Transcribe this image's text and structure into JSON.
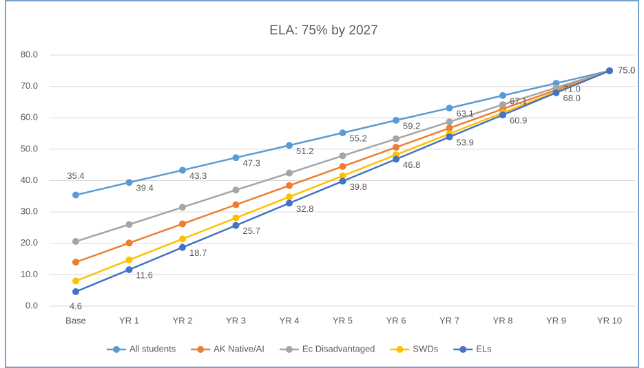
{
  "chart_data": {
    "type": "line",
    "title": "ELA: 75% by 2027",
    "categories": [
      "Base",
      "YR 1",
      "YR 2",
      "YR 3",
      "YR 4",
      "YR 5",
      "YR 6",
      "YR 7",
      "YR 8",
      "YR 9",
      "YR 10"
    ],
    "ylim": [
      0,
      80
    ],
    "yticks": [
      {
        "value": 0,
        "label": "0.0"
      },
      {
        "value": 10,
        "label": "10.0"
      },
      {
        "value": 20,
        "label": "20.0"
      },
      {
        "value": 30,
        "label": "30.0"
      },
      {
        "value": 40,
        "label": "40.0"
      },
      {
        "value": 50,
        "label": "50.0"
      },
      {
        "value": 60,
        "label": "60.0"
      },
      {
        "value": 70,
        "label": "70.0"
      },
      {
        "value": 80,
        "label": "80.0"
      }
    ],
    "grid": true,
    "legend": "bottom",
    "series": [
      {
        "name": "All students",
        "color": "#5b9bd5",
        "values": [
          35.4,
          39.4,
          43.3,
          47.3,
          51.2,
          55.2,
          59.2,
          63.1,
          67.1,
          71.0,
          75.0
        ],
        "value_labels": [
          "35.4",
          "39.4",
          "43.3",
          "47.3",
          "51.2",
          "55.2",
          "59.2",
          "63.1",
          "67.1",
          "71.0",
          "75.0"
        ]
      },
      {
        "name": "AK Native/AI",
        "color": "#ed7d31",
        "values": [
          14.0,
          20.1,
          26.2,
          32.3,
          38.4,
          44.5,
          50.6,
          56.7,
          62.8,
          68.9,
          75.0
        ]
      },
      {
        "name": "Ec Disadvantaged",
        "color": "#a5a5a5",
        "values": [
          20.6,
          26.0,
          31.5,
          37.0,
          42.4,
          47.9,
          53.3,
          58.7,
          64.2,
          69.6,
          75.0
        ]
      },
      {
        "name": "SWDs",
        "color": "#ffc000",
        "values": [
          8.0,
          14.7,
          21.4,
          28.1,
          34.8,
          41.5,
          48.2,
          54.9,
          61.6,
          68.3,
          75.0
        ]
      },
      {
        "name": "ELs",
        "color": "#4472c4",
        "values": [
          4.6,
          11.6,
          18.7,
          25.7,
          32.8,
          39.8,
          46.8,
          53.9,
          60.9,
          68.0,
          75.0
        ],
        "value_labels": [
          "4.6",
          "11.6",
          "18.7",
          "25.7",
          "32.8",
          "39.8",
          "46.8",
          "53.9",
          "60.9",
          "68.0",
          "75.0"
        ]
      }
    ]
  }
}
